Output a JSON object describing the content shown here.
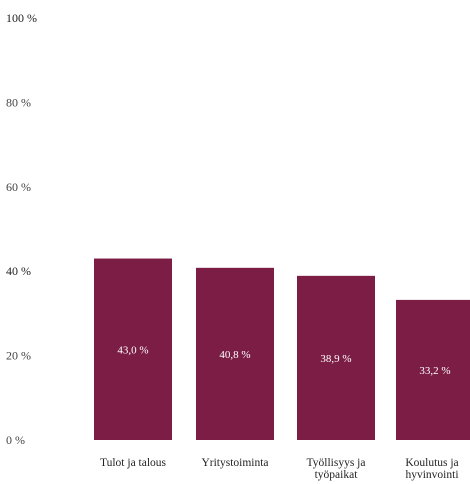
{
  "chart_data": {
    "type": "bar",
    "categories": [
      [
        "Tulot ja talous"
      ],
      [
        "Yritystoiminta"
      ],
      [
        "Työllisyys ja",
        "työpaikat"
      ],
      [
        "Koulutus ja",
        "hyvinvointi"
      ]
    ],
    "values": [
      43.0,
      40.8,
      38.9,
      33.2
    ],
    "data_labels": [
      "43,0 %",
      "40,8 %",
      "38,9 %",
      "33,2 %"
    ],
    "y_ticks": [
      {
        "value": 0,
        "label": "0 %"
      },
      {
        "value": 20,
        "label": "20 %"
      },
      {
        "value": 40,
        "label": "40 %"
      },
      {
        "value": 60,
        "label": "60 %"
      },
      {
        "value": 80,
        "label": "80 %"
      },
      {
        "value": 100,
        "label": "100 %"
      }
    ],
    "ylim": [
      0,
      100
    ],
    "grid": false,
    "bar_color": "#7b1d45",
    "title": "",
    "xlabel": "",
    "ylabel": ""
  }
}
